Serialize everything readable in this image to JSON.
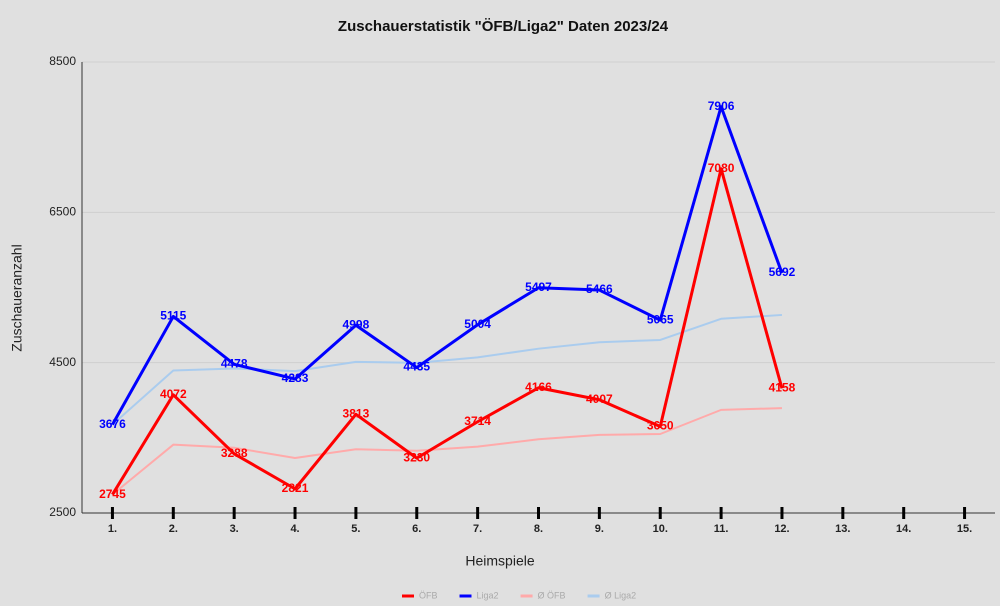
{
  "chart_data": {
    "type": "line",
    "title": "Zuschauerstatistik \"ÖFB/Liga2\" Daten 2023/24",
    "x_label": "Heimspiele",
    "y_label": "Zuschaueranzahl",
    "categories": [
      "1.",
      "2.",
      "3.",
      "4.",
      "5.",
      "6.",
      "7.",
      "8.",
      "9.",
      "10.",
      "11.",
      "12.",
      "13.",
      "14.",
      "15."
    ],
    "series": [
      {
        "name": "ÖFB",
        "color": "#ff0000",
        "width": 3,
        "labels": true,
        "values": [
          2745,
          4072,
          3288,
          2821,
          3813,
          3230,
          3714,
          4166,
          4007,
          3650,
          7080,
          4158,
          null,
          null,
          null
        ]
      },
      {
        "name": "Liga2",
        "color": "#0000ff",
        "width": 3,
        "labels": true,
        "values": [
          3676,
          5115,
          4478,
          4283,
          4998,
          4435,
          5004,
          5497,
          5466,
          5065,
          7906,
          5692,
          null,
          null,
          null
        ]
      },
      {
        "name": "Ø ÖFB",
        "color": "#ffaaaa",
        "width": 2,
        "labels": false,
        "values": [
          2745,
          3409,
          3368,
          3232,
          3348,
          3328,
          3383,
          3481,
          3540,
          3551,
          3872,
          3895,
          null,
          null,
          null
        ]
      },
      {
        "name": "Ø Liga2",
        "color": "#aaccee",
        "width": 2,
        "labels": false,
        "values": [
          3676,
          4396,
          4423,
          4388,
          4510,
          4498,
          4570,
          4686,
          4772,
          4802,
          5084,
          5135,
          null,
          null,
          null
        ]
      }
    ],
    "ylim": [
      2500,
      8500
    ],
    "yticks": [
      2500,
      4500,
      6500,
      8500
    ],
    "grid": true,
    "legend": "bottom"
  }
}
